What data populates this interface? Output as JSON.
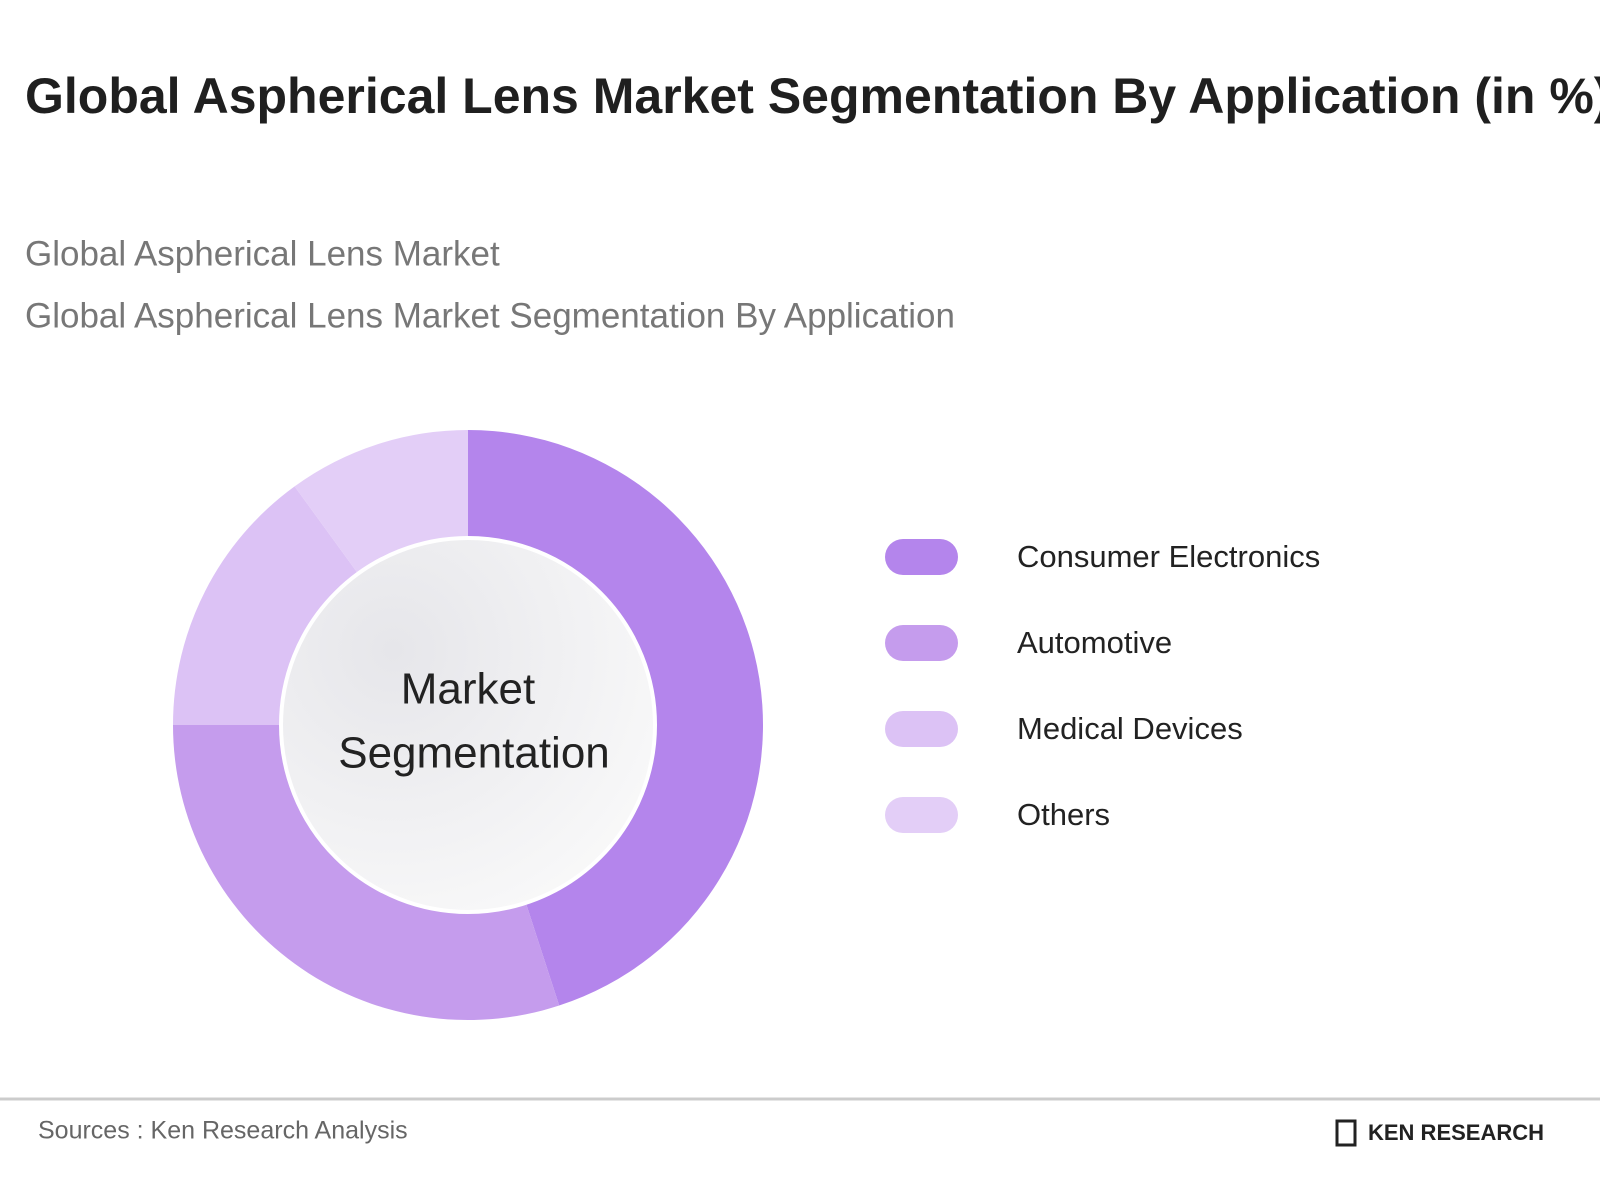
{
  "chart_data": {
    "type": "donut",
    "title": "Global Aspherical Lens Market Segmentation By Application (in %)",
    "subtitles": [
      "Global Aspherical Lens Market",
      "Global Aspherical Lens Market Segmentation By Application"
    ],
    "center_label": [
      "Market",
      "Segmentation"
    ],
    "categories": [
      "Consumer Electronics",
      "Automotive",
      "Medical Devices",
      "Others"
    ],
    "values": [
      45,
      30,
      15,
      10
    ],
    "colors": [
      "#b485ec",
      "#c59ced",
      "#dcc2f5",
      "#e3cef7"
    ],
    "source": "Sources : Ken Research Analysis",
    "brand": "KEN RESEARCH"
  }
}
